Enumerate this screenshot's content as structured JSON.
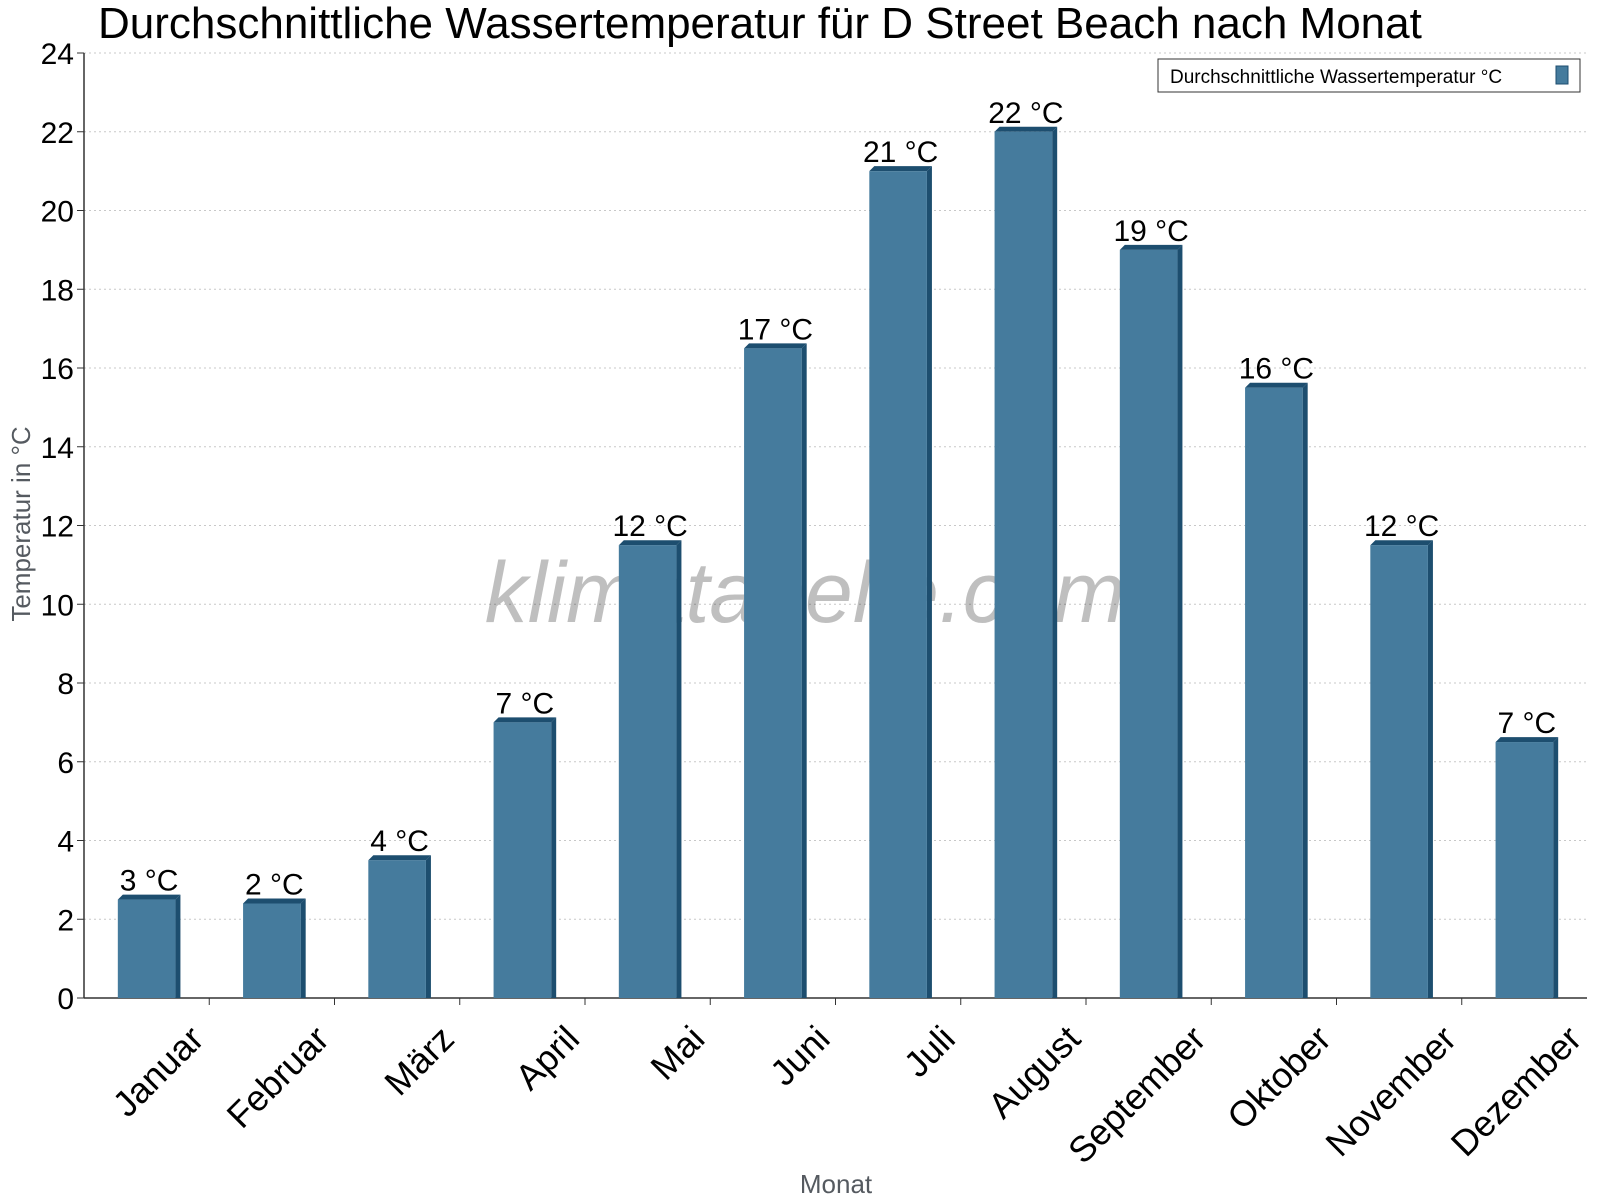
{
  "chart_data": {
    "type": "bar",
    "title": "Durchschnittliche Wassertemperatur für D Street Beach nach Monat",
    "xlabel": "Monat",
    "ylabel": "Temperatur in °C",
    "categories": [
      "Januar",
      "Februar",
      "März",
      "April",
      "Mai",
      "Juni",
      "Juli",
      "August",
      "September",
      "Oktober",
      "November",
      "Dezember"
    ],
    "series": [
      {
        "name": "Durchschnittliche Wassertemperatur °C",
        "values": [
          2.5,
          2.4,
          3.5,
          7.0,
          11.5,
          16.5,
          21.0,
          22.0,
          19.0,
          15.5,
          11.5,
          6.5
        ],
        "labels": [
          "3 °C",
          "2 °C",
          "4 °C",
          "7 °C",
          "12 °C",
          "17 °C",
          "21 °C",
          "22 °C",
          "19 °C",
          "16 °C",
          "12 °C",
          "7 °C"
        ]
      }
    ],
    "ylim": [
      0,
      24
    ],
    "yticks": [
      0,
      2,
      4,
      6,
      8,
      10,
      12,
      14,
      16,
      18,
      20,
      22,
      24
    ],
    "grid": true,
    "legend_position": "top-right",
    "colors": {
      "bar_face": "#457b9d",
      "bar_edge": "#1d4e6f",
      "grid": "#c8c8c8"
    },
    "watermark": "klimatabelle.com"
  }
}
